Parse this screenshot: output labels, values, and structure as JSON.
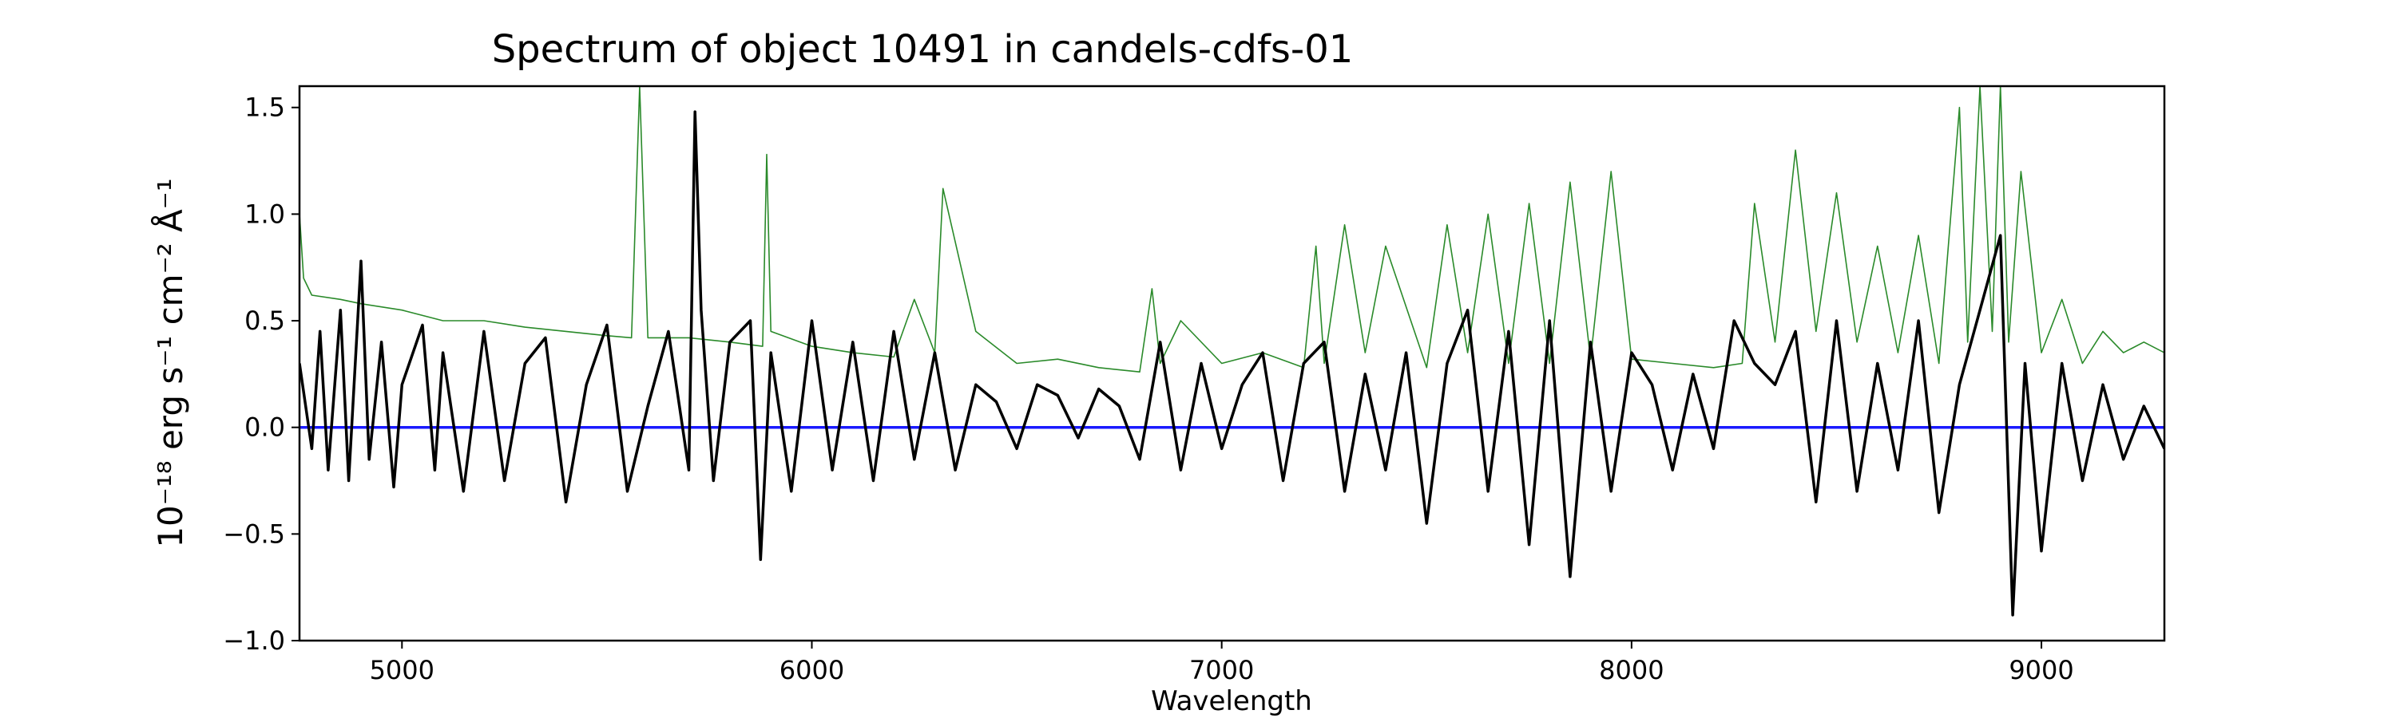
{
  "chart_data": {
    "type": "line",
    "title": "Spectrum of object 10491 in candels-cdfs-01",
    "xlabel": "Wavelength",
    "ylabel": "10⁻¹⁸ erg s⁻¹ cm⁻² Å⁻¹",
    "xlim": [
      4750,
      9300
    ],
    "ylim": [
      -1.0,
      1.6
    ],
    "xticks": [
      5000,
      6000,
      7000,
      8000,
      9000
    ],
    "xtick_labels": [
      "5000",
      "6000",
      "7000",
      "8000",
      "9000"
    ],
    "yticks": [
      -1.0,
      -0.5,
      0.0,
      0.5,
      1.0,
      1.5
    ],
    "ytick_labels": [
      "−1.0",
      "−0.5",
      "0.0",
      "0.5",
      "1.0",
      "1.5"
    ],
    "grid": false,
    "series": [
      {
        "key": "flux",
        "color": "#000000",
        "x": [
          4750,
          4780,
          4800,
          4820,
          4850,
          4870,
          4900,
          4920,
          4950,
          4980,
          5000,
          5050,
          5080,
          5100,
          5150,
          5200,
          5250,
          5300,
          5350,
          5400,
          5450,
          5500,
          5550,
          5600,
          5650,
          5700,
          5715,
          5730,
          5760,
          5800,
          5850,
          5875,
          5900,
          5950,
          6000,
          6050,
          6100,
          6150,
          6200,
          6250,
          6300,
          6350,
          6400,
          6450,
          6500,
          6550,
          6600,
          6650,
          6700,
          6750,
          6800,
          6850,
          6900,
          6950,
          7000,
          7050,
          7100,
          7150,
          7200,
          7250,
          7300,
          7350,
          7400,
          7450,
          7500,
          7550,
          7600,
          7650,
          7700,
          7750,
          7800,
          7850,
          7900,
          7950,
          8000,
          8050,
          8100,
          8150,
          8200,
          8250,
          8300,
          8350,
          8400,
          8450,
          8500,
          8550,
          8600,
          8650,
          8700,
          8750,
          8800,
          8850,
          8900,
          8930,
          8960,
          9000,
          9050,
          9100,
          9150,
          9200,
          9250,
          9300
        ],
        "y": [
          0.3,
          -0.1,
          0.45,
          -0.2,
          0.55,
          -0.25,
          0.78,
          -0.15,
          0.4,
          -0.28,
          0.2,
          0.48,
          -0.2,
          0.35,
          -0.3,
          0.45,
          -0.25,
          0.3,
          0.42,
          -0.35,
          0.2,
          0.48,
          -0.3,
          0.1,
          0.45,
          -0.2,
          1.48,
          0.55,
          -0.25,
          0.4,
          0.5,
          -0.62,
          0.35,
          -0.3,
          0.5,
          -0.2,
          0.4,
          -0.25,
          0.45,
          -0.15,
          0.35,
          -0.2,
          0.2,
          0.12,
          -0.1,
          0.2,
          0.15,
          -0.05,
          0.18,
          0.1,
          -0.15,
          0.4,
          -0.2,
          0.3,
          -0.1,
          0.2,
          0.35,
          -0.25,
          0.3,
          0.4,
          -0.3,
          0.25,
          -0.2,
          0.35,
          -0.45,
          0.3,
          0.55,
          -0.3,
          0.45,
          -0.55,
          0.5,
          -0.7,
          0.4,
          -0.3,
          0.35,
          0.2,
          -0.2,
          0.25,
          -0.1,
          0.5,
          0.3,
          0.2,
          0.45,
          -0.35,
          0.5,
          -0.3,
          0.3,
          -0.2,
          0.5,
          -0.4,
          0.2,
          0.55,
          0.9,
          -0.88,
          0.3,
          -0.58,
          0.3,
          -0.25,
          0.2,
          -0.15,
          0.1,
          -0.1
        ]
      },
      {
        "key": "error",
        "color": "#2a8a2a",
        "x": [
          4750,
          4760,
          4780,
          4850,
          4900,
          5000,
          5100,
          5200,
          5300,
          5400,
          5500,
          5560,
          5580,
          5600,
          5700,
          5800,
          5880,
          5890,
          5900,
          6000,
          6100,
          6200,
          6250,
          6300,
          6320,
          6400,
          6500,
          6600,
          6700,
          6800,
          6830,
          6850,
          6900,
          7000,
          7100,
          7200,
          7230,
          7250,
          7300,
          7350,
          7400,
          7500,
          7550,
          7600,
          7650,
          7700,
          7750,
          7800,
          7850,
          7900,
          7950,
          8000,
          8100,
          8200,
          8270,
          8300,
          8350,
          8400,
          8450,
          8500,
          8550,
          8600,
          8650,
          8700,
          8750,
          8800,
          8820,
          8850,
          8880,
          8900,
          8920,
          8950,
          9000,
          9050,
          9100,
          9150,
          9200,
          9250,
          9300
        ],
        "y": [
          1.0,
          0.7,
          0.62,
          0.6,
          0.58,
          0.55,
          0.5,
          0.5,
          0.47,
          0.45,
          0.43,
          0.42,
          1.6,
          0.42,
          0.42,
          0.4,
          0.38,
          1.28,
          0.45,
          0.38,
          0.35,
          0.33,
          0.6,
          0.35,
          1.12,
          0.45,
          0.3,
          0.32,
          0.28,
          0.26,
          0.65,
          0.3,
          0.5,
          0.3,
          0.35,
          0.28,
          0.85,
          0.3,
          0.95,
          0.35,
          0.85,
          0.28,
          0.95,
          0.35,
          1.0,
          0.3,
          1.05,
          0.3,
          1.15,
          0.32,
          1.2,
          0.32,
          0.3,
          0.28,
          0.3,
          1.05,
          0.4,
          1.3,
          0.45,
          1.1,
          0.4,
          0.85,
          0.35,
          0.9,
          0.3,
          1.5,
          0.4,
          1.6,
          0.45,
          1.6,
          0.4,
          1.2,
          0.35,
          0.6,
          0.3,
          0.45,
          0.35,
          0.4,
          0.35
        ]
      },
      {
        "key": "zero",
        "color": "#1a1aff",
        "x": [
          4750,
          9300
        ],
        "y": [
          0.0,
          0.0
        ]
      }
    ]
  }
}
